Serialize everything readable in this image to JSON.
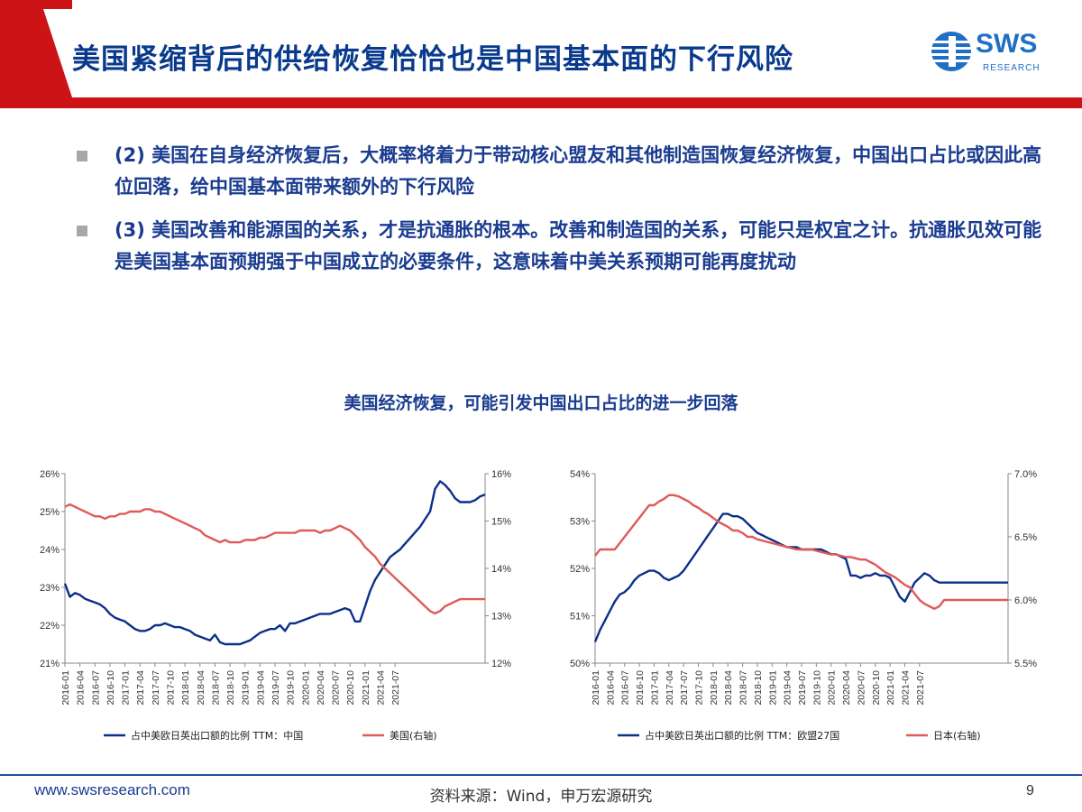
{
  "header": {
    "title": "美国紧缩背后的供给恢复恰恰也是中国基本面的下行风险",
    "logo": {
      "text": "SWS",
      "subtext": "RESEARCH",
      "color": "#1f6fc4"
    },
    "accent_color": "#cc1417"
  },
  "bullets": [
    {
      "icon": "square-bullet-icon",
      "text": "(2) 美国在自身经济恢复后，大概率将着力于带动核心盟友和其他制造国恢复经济恢复，中国出口占比或因此高位回落，给中国基本面带来额外的下行风险"
    },
    {
      "icon": "square-bullet-icon",
      "text": "(3) 美国改善和能源国的关系，才是抗通胀的根本。改善和制造国的关系，可能只是权宜之计。抗通胀见效可能是美国基本面预期强于中国成立的必要条件，这意味着中美关系预期可能再度扰动"
    }
  ],
  "chart_heading": "美国经济恢复，可能引发中国出口占比的进一步回落",
  "chart_data": [
    {
      "type": "line",
      "x_start": "2016-01",
      "x_step_months": 1,
      "x_ticks": [
        "2016-01",
        "2016-04",
        "2016-07",
        "2016-10",
        "2017-01",
        "2017-04",
        "2017-07",
        "2017-10",
        "2018-01",
        "2018-04",
        "2018-07",
        "2018-10",
        "2019-01",
        "2019-04",
        "2019-07",
        "2019-10",
        "2020-01",
        "2020-04",
        "2020-07",
        "2020-10",
        "2021-01",
        "2021-04",
        "2021-07"
      ],
      "y_left": {
        "min": 21,
        "max": 26,
        "ticks": [
          "21%",
          "22%",
          "23%",
          "24%",
          "25%",
          "26%"
        ]
      },
      "y_right": {
        "min": 12,
        "max": 16,
        "ticks": [
          "12%",
          "13%",
          "14%",
          "15%",
          "16%"
        ]
      },
      "series": [
        {
          "name": "占中美欧日英出口额的比例 TTM：中国",
          "axis": "left",
          "color": "#0b2f8a",
          "values": [
            23.1,
            22.75,
            22.85,
            22.8,
            22.7,
            22.65,
            22.6,
            22.55,
            22.45,
            22.3,
            22.2,
            22.15,
            22.1,
            22.0,
            21.9,
            21.85,
            21.85,
            21.9,
            22.0,
            22.0,
            22.05,
            22.0,
            21.95,
            21.95,
            21.9,
            21.85,
            21.75,
            21.7,
            21.65,
            21.6,
            21.75,
            21.55,
            21.5,
            21.5,
            21.5,
            21.5,
            21.55,
            21.6,
            21.7,
            21.8,
            21.85,
            21.9,
            21.9,
            22.0,
            21.85,
            22.05,
            22.05,
            22.1,
            22.15,
            22.2,
            22.25,
            22.3,
            22.3,
            22.3,
            22.35,
            22.4,
            22.45,
            22.4,
            22.1,
            22.1,
            22.5,
            22.9,
            23.2,
            23.4,
            23.6,
            23.8,
            23.9,
            24.0,
            24.15,
            24.3,
            24.45,
            24.6,
            24.8,
            25.0,
            25.6,
            25.8,
            25.7,
            25.55,
            25.35,
            25.25,
            25.25,
            25.25,
            25.3,
            25.4,
            25.45
          ]
        },
        {
          "name": "美国(右轴)",
          "axis": "right",
          "color": "#e05a5a",
          "values": [
            15.3,
            15.35,
            15.3,
            15.25,
            15.2,
            15.15,
            15.1,
            15.1,
            15.05,
            15.1,
            15.1,
            15.15,
            15.15,
            15.2,
            15.2,
            15.2,
            15.25,
            15.25,
            15.2,
            15.2,
            15.15,
            15.1,
            15.05,
            15.0,
            14.95,
            14.9,
            14.85,
            14.8,
            14.7,
            14.65,
            14.6,
            14.55,
            14.6,
            14.55,
            14.55,
            14.55,
            14.6,
            14.6,
            14.6,
            14.65,
            14.65,
            14.7,
            14.75,
            14.75,
            14.75,
            14.75,
            14.75,
            14.8,
            14.8,
            14.8,
            14.8,
            14.75,
            14.8,
            14.8,
            14.85,
            14.9,
            14.85,
            14.8,
            14.7,
            14.6,
            14.45,
            14.35,
            14.25,
            14.1,
            14.0,
            13.9,
            13.8,
            13.7,
            13.6,
            13.5,
            13.4,
            13.3,
            13.2,
            13.1,
            13.05,
            13.1,
            13.2,
            13.25,
            13.3,
            13.35,
            13.35,
            13.35,
            13.35,
            13.35,
            13.35
          ]
        }
      ]
    },
    {
      "type": "line",
      "x_start": "2016-01",
      "x_step_months": 1,
      "x_ticks": [
        "2016-01",
        "2016-04",
        "2016-07",
        "2016-10",
        "2017-01",
        "2017-04",
        "2017-07",
        "2017-10",
        "2018-01",
        "2018-04",
        "2018-07",
        "2018-10",
        "2019-01",
        "2019-04",
        "2019-07",
        "2019-10",
        "2020-01",
        "2020-04",
        "2020-07",
        "2020-10",
        "2021-01",
        "2021-04",
        "2021-07"
      ],
      "y_left": {
        "min": 50,
        "max": 54,
        "ticks": [
          "50%",
          "51%",
          "52%",
          "53%",
          "54%"
        ]
      },
      "y_right": {
        "min": 5.5,
        "max": 7.0,
        "ticks": [
          "5.5%",
          "6.0%",
          "6.5%",
          "7.0%"
        ]
      },
      "series": [
        {
          "name": "占中美欧日英出口额的比例 TTM：欧盟27国",
          "axis": "left",
          "color": "#0b2f8a",
          "values": [
            50.45,
            50.7,
            50.9,
            51.1,
            51.3,
            51.45,
            51.5,
            51.6,
            51.75,
            51.85,
            51.9,
            51.95,
            51.95,
            51.9,
            51.8,
            51.75,
            51.8,
            51.85,
            51.95,
            52.1,
            52.25,
            52.4,
            52.55,
            52.7,
            52.85,
            53.0,
            53.15,
            53.15,
            53.1,
            53.1,
            53.05,
            52.95,
            52.85,
            52.75,
            52.7,
            52.65,
            52.6,
            52.55,
            52.5,
            52.45,
            52.45,
            52.45,
            52.4,
            52.4,
            52.4,
            52.4,
            52.4,
            52.35,
            52.3,
            52.3,
            52.25,
            52.2,
            51.85,
            51.85,
            51.8,
            51.85,
            51.85,
            51.9,
            51.85,
            51.85,
            51.8,
            51.6,
            51.4,
            51.3,
            51.5,
            51.7,
            51.8,
            51.9,
            51.85,
            51.75,
            51.7,
            51.7,
            51.7,
            51.7,
            51.7,
            51.7,
            51.7,
            51.7,
            51.7,
            51.7,
            51.7,
            51.7,
            51.7,
            51.7,
            51.7
          ]
        },
        {
          "name": "日本(右轴)",
          "axis": "right",
          "color": "#e05a5a",
          "values": [
            6.35,
            6.4,
            6.4,
            6.4,
            6.4,
            6.45,
            6.5,
            6.55,
            6.6,
            6.65,
            6.7,
            6.75,
            6.75,
            6.78,
            6.8,
            6.83,
            6.83,
            6.82,
            6.8,
            6.78,
            6.75,
            6.73,
            6.7,
            6.68,
            6.65,
            6.62,
            6.6,
            6.58,
            6.55,
            6.55,
            6.53,
            6.5,
            6.5,
            6.48,
            6.47,
            6.46,
            6.45,
            6.44,
            6.43,
            6.42,
            6.41,
            6.4,
            6.4,
            6.4,
            6.4,
            6.39,
            6.38,
            6.37,
            6.36,
            6.36,
            6.35,
            6.34,
            6.34,
            6.33,
            6.32,
            6.32,
            6.3,
            6.28,
            6.25,
            6.22,
            6.2,
            6.18,
            6.15,
            6.12,
            6.1,
            6.05,
            6.0,
            5.97,
            5.95,
            5.93,
            5.95,
            6.0,
            6.0,
            6.0,
            6.0,
            6.0,
            6.0,
            6.0,
            6.0,
            6.0,
            6.0,
            6.0,
            6.0,
            6.0,
            6.0
          ]
        }
      ]
    }
  ],
  "footer": {
    "url": "www.swsresearch.com",
    "source": "资料来源：Wind，申万宏源研究",
    "page_number": "9"
  }
}
